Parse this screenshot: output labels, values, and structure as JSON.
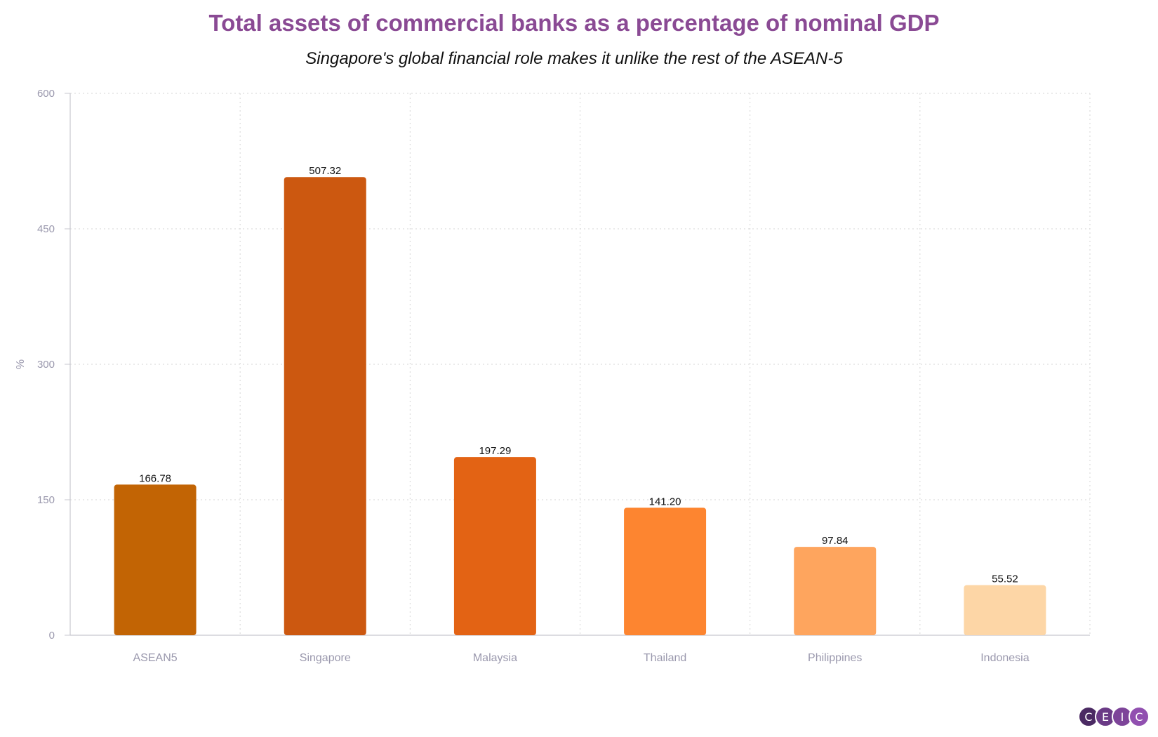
{
  "title": "Total assets of commercial banks as a percentage of nominal GDP",
  "subtitle": "Singapore's global financial role makes it unlike the rest of the ASEAN-5",
  "logo": {
    "letters": [
      "C",
      "E",
      "I",
      "C"
    ],
    "colors": [
      "#4b2a63",
      "#6a3a86",
      "#7d4499",
      "#9150b0"
    ]
  },
  "chart_data": {
    "type": "bar",
    "title": "Total assets of commercial banks as a percentage of nominal GDP",
    "subtitle": "Singapore's global financial role makes it unlike the rest of the ASEAN-5",
    "ylabel": "%",
    "xlabel": "",
    "ylim": [
      0,
      600
    ],
    "yticks": [
      0,
      150,
      300,
      450,
      600
    ],
    "grid": true,
    "legend": "none",
    "categories": [
      "ASEAN5",
      "Singapore",
      "Malaysia",
      "Thailand",
      "Philippines",
      "Indonesia"
    ],
    "values": [
      166.78,
      507.32,
      197.29,
      141.2,
      97.84,
      55.52
    ],
    "value_labels": [
      "166.78",
      "507.32",
      "197.29",
      "141.20",
      "97.84",
      "55.52"
    ],
    "colors": [
      "#c26404",
      "#cc5810",
      "#e36314",
      "#fd8530",
      "#fea55e",
      "#fdd6a6"
    ]
  }
}
